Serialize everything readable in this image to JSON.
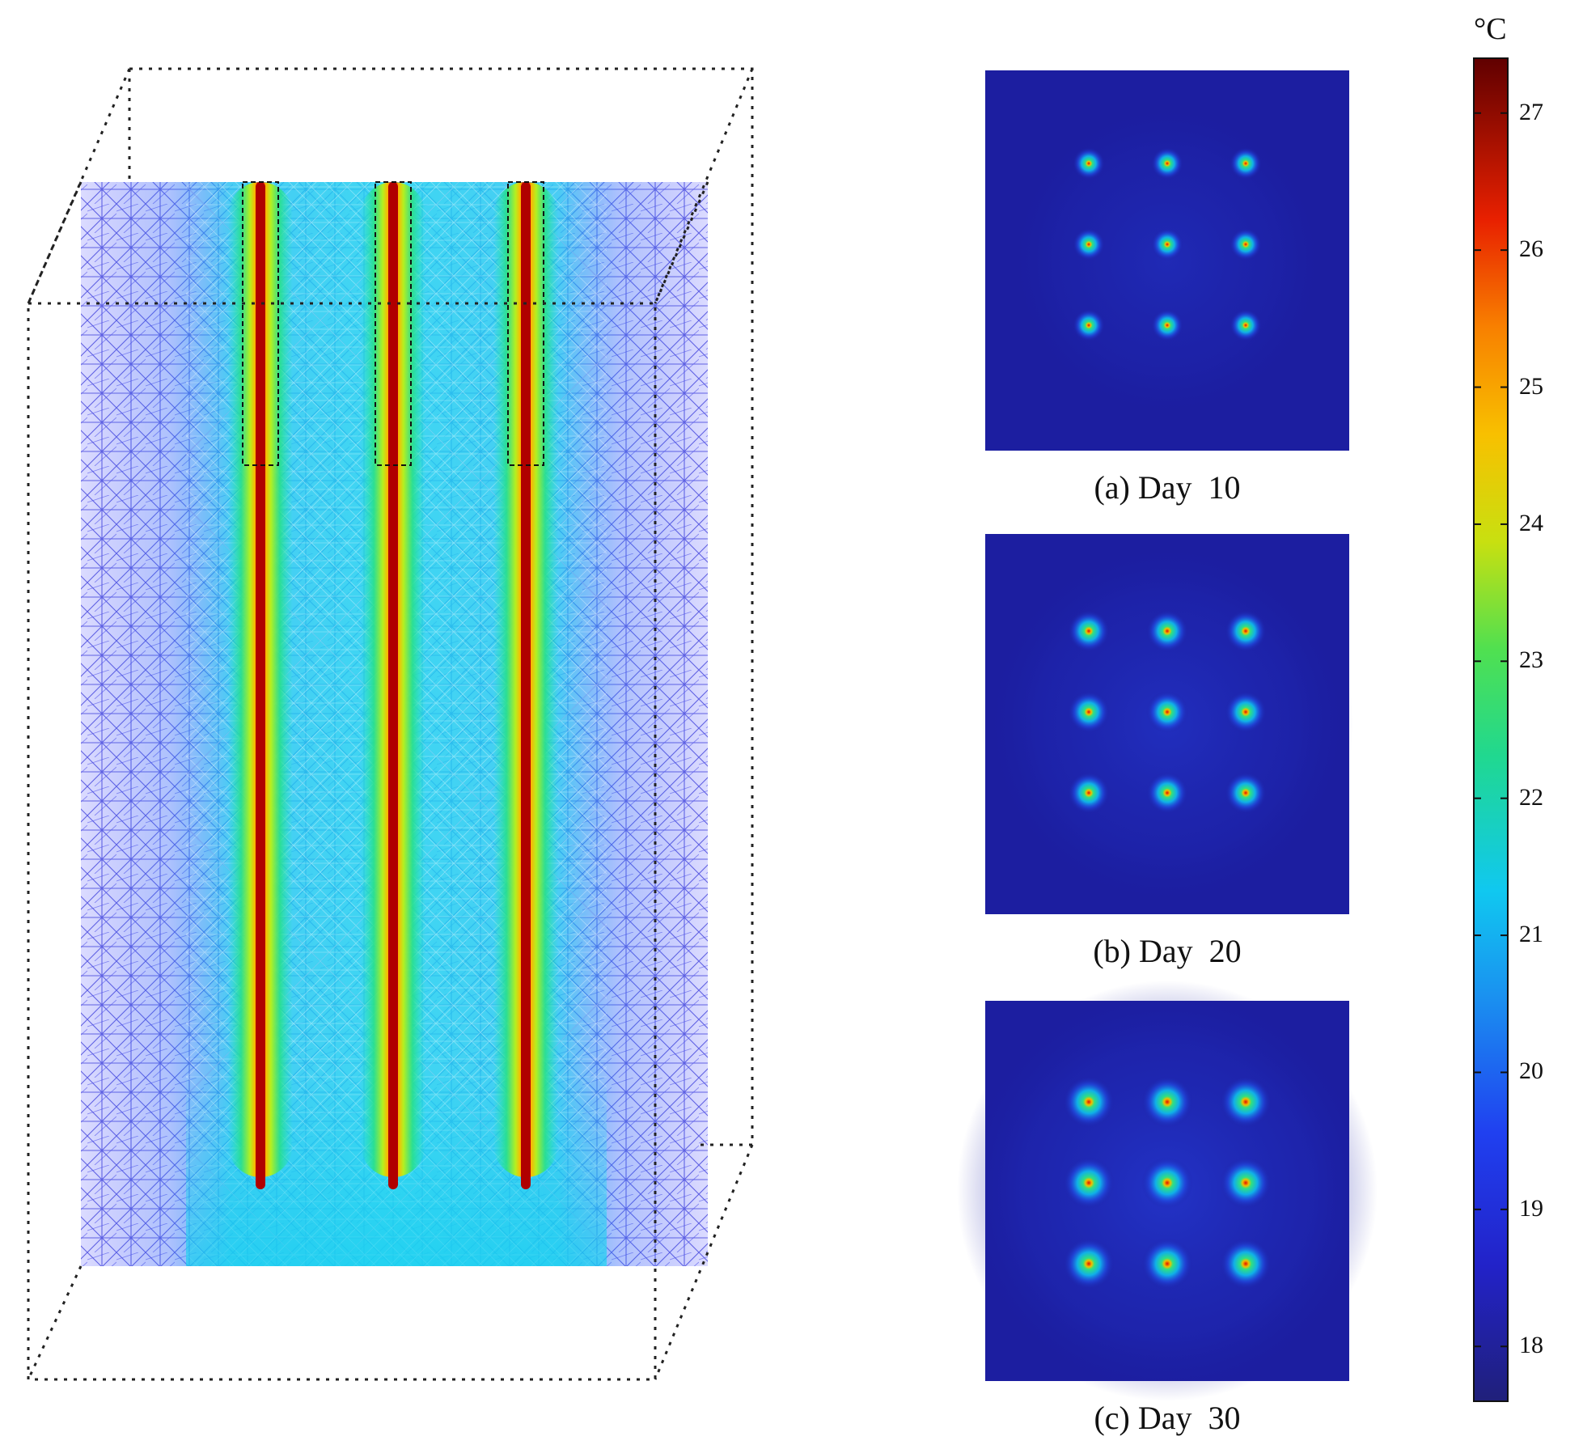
{
  "colorbar": {
    "unit": "°C",
    "min": 17.6,
    "max": 27.4,
    "ticks": [
      18,
      19,
      20,
      21,
      22,
      23,
      24,
      25,
      26,
      27
    ]
  },
  "section_3d": {
    "borehole_count": 3
  },
  "panels": [
    {
      "caption": "(a) Day  10",
      "grid": "3x3",
      "day": 10
    },
    {
      "caption": "(b) Day  20",
      "grid": "3x3",
      "day": 20
    },
    {
      "caption": "(c) Day  30",
      "grid": "3x3",
      "day": 30
    }
  ],
  "colors": {
    "background_field": "#1c1ea0",
    "mesh": "#3a3ad6",
    "hot": "#c00000"
  }
}
